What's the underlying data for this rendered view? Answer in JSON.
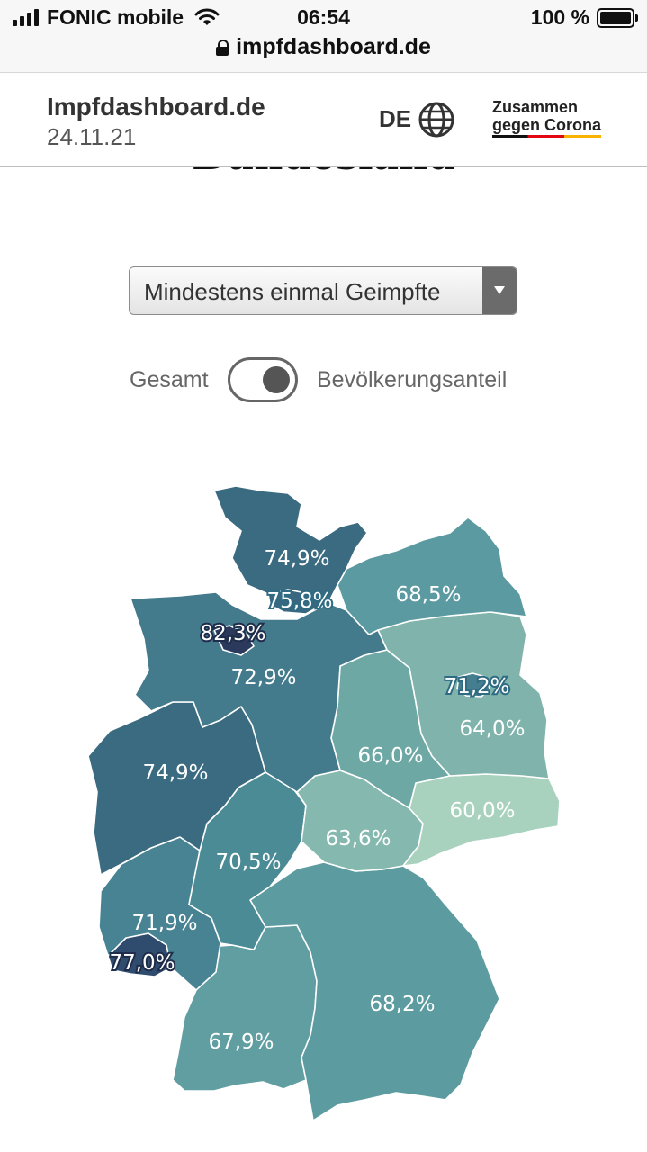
{
  "status": {
    "carrier": "FONIC mobile",
    "time": "06:54",
    "battery": "100 %",
    "url": "impfdashboard.de"
  },
  "header": {
    "title": "Impfdashboard.de",
    "date": "24.11.21",
    "language": "DE",
    "logo_line1": "Zusammen",
    "logo_line2": "gegen Corona"
  },
  "section_heading_partial": "Bundesland",
  "filter": {
    "selected": "Mindestens einmal Geimpfte"
  },
  "toggle": {
    "left_label": "Gesamt",
    "right_label": "Bevölkerungsanteil",
    "state": "Bevölkerungsanteil"
  },
  "map": {
    "colors": {
      "darkest": "#2b3a5c",
      "dark": "#3a6a82",
      "mid": "#4e9097",
      "light": "#7fb3ab",
      "lightest": "#a7d1bd"
    },
    "states": [
      {
        "name": "Schleswig-Holstein",
        "label": "74,9%",
        "color": "#3b6b81"
      },
      {
        "name": "Hamburg",
        "label": "75,8%",
        "color": "#3a6780"
      },
      {
        "name": "Mecklenburg-Vorpommern",
        "label": "68,5%",
        "color": "#5b9aa0"
      },
      {
        "name": "Bremen",
        "label": "82,3%",
        "color": "#2b3a5c"
      },
      {
        "name": "Niedersachsen",
        "label": "72,9%",
        "color": "#437a8c"
      },
      {
        "name": "Berlin",
        "label": "71,2%",
        "color": "#457f8f"
      },
      {
        "name": "Brandenburg",
        "label": "64,0%",
        "color": "#7fb3ab"
      },
      {
        "name": "Sachsen-Anhalt",
        "label": "66,0%",
        "color": "#6ea8a5"
      },
      {
        "name": "Nordrhein-Westfalen",
        "label": "74,9%",
        "color": "#3b6b81"
      },
      {
        "name": "Sachsen",
        "label": "60,0%",
        "color": "#a8d2be"
      },
      {
        "name": "Thüringen",
        "label": "63,6%",
        "color": "#85b8ae"
      },
      {
        "name": "Hessen",
        "label": "70,5%",
        "color": "#4a8b95"
      },
      {
        "name": "Rheinland-Pfalz",
        "label": "71,9%",
        "color": "#478393"
      },
      {
        "name": "Saarland",
        "label": "77,0%",
        "color": "#2f4c6e"
      },
      {
        "name": "Bayern",
        "label": "68,2%",
        "color": "#5c9ba0"
      },
      {
        "name": "Baden-Württemberg",
        "label": "67,9%",
        "color": "#609ea2"
      }
    ]
  }
}
